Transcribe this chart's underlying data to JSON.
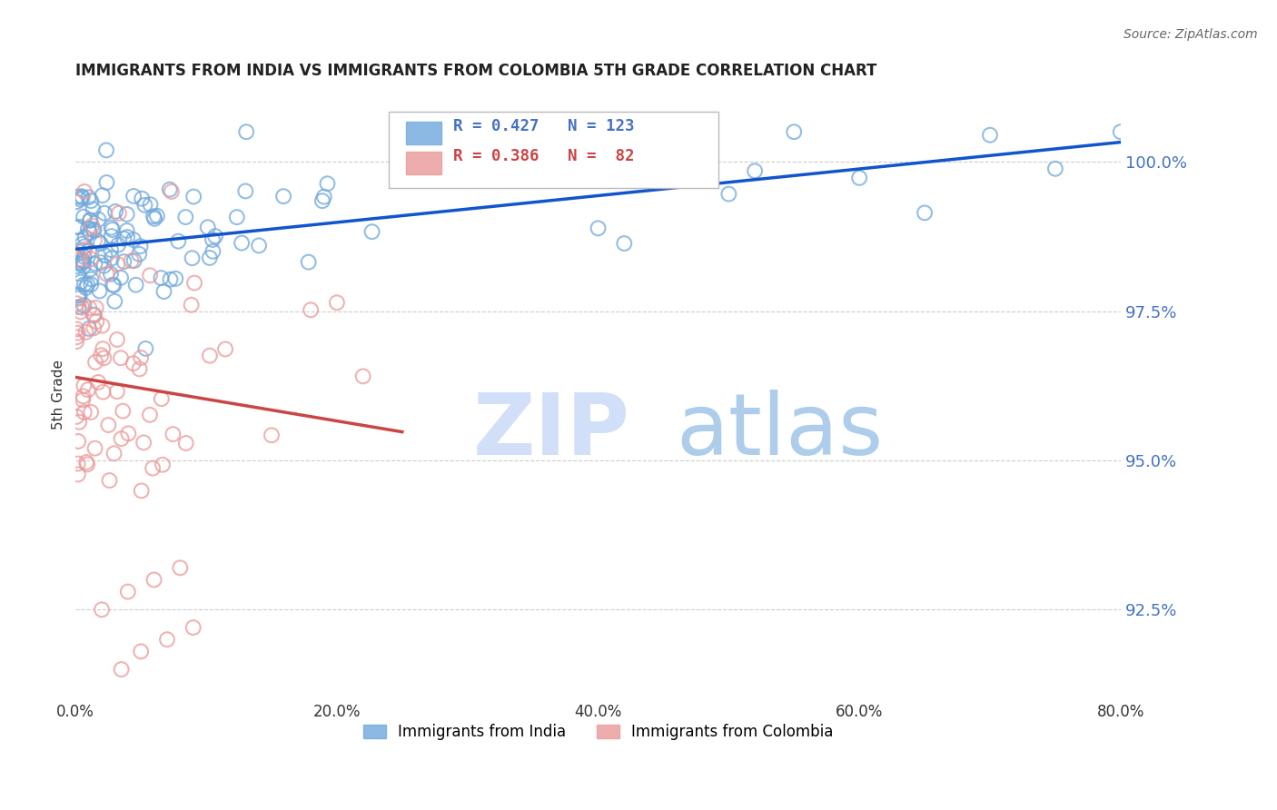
{
  "title": "IMMIGRANTS FROM INDIA VS IMMIGRANTS FROM COLOMBIA 5TH GRADE CORRELATION CHART",
  "source_text": "Source: ZipAtlas.com",
  "ylabel_left": "5th Grade",
  "x_tick_labels": [
    "0.0%",
    "20.0%",
    "40.0%",
    "60.0%",
    "80.0%"
  ],
  "x_tick_positions": [
    0.0,
    20.0,
    40.0,
    60.0,
    80.0
  ],
  "y_tick_labels": [
    "92.5%",
    "95.0%",
    "97.5%",
    "100.0%"
  ],
  "y_tick_positions": [
    92.5,
    95.0,
    97.5,
    100.0
  ],
  "xlim": [
    0.0,
    80.0
  ],
  "ylim": [
    91.0,
    101.2
  ],
  "legend_india": "Immigrants from India",
  "legend_colombia": "Immigrants from Colombia",
  "r_india": 0.427,
  "n_india": 123,
  "r_colombia": 0.386,
  "n_colombia": 82,
  "color_india": "#6fa8dc",
  "color_colombia": "#ea9999",
  "color_india_line": "#1155cc",
  "color_colombia_line": "#cc4444",
  "color_axis_right": "#4472c4",
  "watermark_zip_color": "#c9daf8",
  "watermark_atlas_color": "#9fc5e8",
  "background_color": "#ffffff"
}
